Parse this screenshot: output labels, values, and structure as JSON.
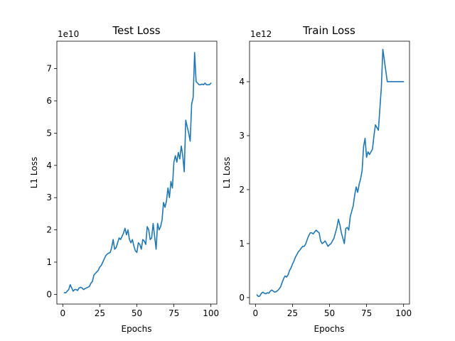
{
  "chart_data": [
    {
      "type": "line",
      "title": "Test Loss",
      "xlabel": "Epochs",
      "ylabel": "L1 Loss",
      "offset_label": "1e10",
      "xlim": [
        -4,
        104
      ],
      "ylim": [
        -0.3,
        7.85
      ],
      "xticks": [
        0,
        25,
        50,
        75,
        100
      ],
      "yticks": [
        0,
        1,
        2,
        3,
        4,
        5,
        6,
        7
      ],
      "color": "#1f77b4",
      "x": [
        1,
        2,
        3,
        4,
        5,
        6,
        7,
        8,
        9,
        10,
        11,
        12,
        13,
        14,
        15,
        16,
        17,
        18,
        19,
        20,
        21,
        22,
        23,
        24,
        25,
        26,
        27,
        28,
        29,
        30,
        31,
        32,
        33,
        34,
        35,
        36,
        37,
        38,
        39,
        40,
        41,
        42,
        43,
        44,
        45,
        46,
        47,
        48,
        49,
        50,
        51,
        52,
        53,
        54,
        55,
        56,
        57,
        58,
        59,
        60,
        61,
        62,
        63,
        64,
        65,
        66,
        67,
        68,
        69,
        70,
        71,
        72,
        73,
        74,
        75,
        76,
        77,
        78,
        79,
        80,
        81,
        82,
        83,
        84,
        85,
        86,
        87,
        88,
        89,
        90,
        91,
        92,
        93,
        94,
        95,
        96,
        97,
        98,
        99,
        100
      ],
      "y": [
        0.05,
        0.05,
        0.1,
        0.15,
        0.3,
        0.2,
        0.1,
        0.15,
        0.15,
        0.12,
        0.2,
        0.22,
        0.2,
        0.15,
        0.18,
        0.2,
        0.22,
        0.25,
        0.35,
        0.4,
        0.6,
        0.65,
        0.7,
        0.75,
        0.85,
        0.9,
        1.0,
        1.1,
        1.2,
        1.25,
        1.28,
        1.3,
        1.45,
        1.7,
        1.4,
        1.45,
        1.6,
        1.75,
        1.7,
        1.8,
        1.9,
        2.05,
        1.85,
        2.0,
        1.7,
        1.6,
        1.7,
        1.5,
        1.35,
        1.3,
        1.6,
        1.55,
        1.4,
        1.7,
        1.65,
        1.55,
        2.1,
        2.0,
        1.7,
        1.75,
        2.2,
        1.8,
        1.4,
        2.2,
        2.0,
        2.1,
        2.3,
        2.85,
        2.7,
        2.9,
        3.3,
        3.0,
        3.5,
        3.3,
        4.1,
        4.3,
        4.1,
        4.4,
        4.2,
        4.6,
        4.3,
        3.8,
        5.4,
        5.2,
        5.0,
        4.75,
        5.9,
        6.1,
        7.5,
        6.6,
        6.55,
        6.5,
        6.5,
        6.52,
        6.5,
        6.55,
        6.5,
        6.5,
        6.5,
        6.55
      ]
    },
    {
      "type": "line",
      "title": "Train Loss",
      "xlabel": "Epochs",
      "ylabel": "L1 Loss",
      "offset_label": "1e12",
      "xlim": [
        -4,
        104
      ],
      "ylim": [
        -0.12,
        4.75
      ],
      "xticks": [
        0,
        25,
        50,
        75,
        100
      ],
      "yticks": [
        0,
        1,
        2,
        3,
        4
      ],
      "color": "#1f77b4",
      "x": [
        1,
        2,
        3,
        4,
        5,
        6,
        7,
        8,
        9,
        10,
        11,
        12,
        13,
        14,
        15,
        16,
        17,
        18,
        19,
        20,
        21,
        22,
        23,
        24,
        25,
        26,
        27,
        28,
        29,
        30,
        31,
        32,
        33,
        34,
        35,
        36,
        37,
        38,
        39,
        40,
        41,
        42,
        43,
        44,
        45,
        46,
        47,
        48,
        49,
        50,
        51,
        52,
        53,
        54,
        55,
        56,
        57,
        58,
        59,
        60,
        61,
        62,
        63,
        64,
        65,
        66,
        67,
        68,
        69,
        70,
        71,
        72,
        73,
        74,
        75,
        76,
        77,
        78,
        79,
        80,
        81,
        82,
        83,
        84,
        85,
        86,
        87,
        88,
        89,
        90,
        91,
        92,
        93,
        94,
        95,
        96,
        97,
        98,
        99,
        100
      ],
      "y": [
        0.05,
        0.02,
        0.03,
        0.08,
        0.1,
        0.08,
        0.07,
        0.09,
        0.08,
        0.12,
        0.14,
        0.12,
        0.1,
        0.11,
        0.13,
        0.16,
        0.2,
        0.28,
        0.35,
        0.4,
        0.38,
        0.42,
        0.5,
        0.55,
        0.62,
        0.68,
        0.75,
        0.8,
        0.85,
        0.88,
        0.92,
        0.95,
        0.95,
        1.0,
        1.08,
        1.15,
        1.2,
        1.2,
        1.18,
        1.22,
        1.25,
        1.22,
        1.2,
        1.05,
        1.0,
        1.02,
        1.05,
        1.0,
        0.95,
        0.98,
        1.0,
        1.05,
        1.1,
        1.2,
        1.3,
        1.45,
        1.35,
        1.2,
        1.1,
        1.0,
        1.28,
        1.3,
        1.25,
        1.5,
        1.6,
        1.7,
        1.9,
        2.05,
        1.95,
        2.1,
        2.2,
        2.35,
        2.8,
        2.95,
        2.6,
        2.7,
        2.65,
        2.7,
        2.75,
        3.0,
        3.2,
        3.15,
        3.1,
        3.5,
        3.9,
        4.6,
        4.4,
        4.2,
        4.0,
        4.0,
        4.0,
        4.0,
        4.0,
        4.0,
        4.0,
        4.0,
        4.0,
        4.0,
        4.0,
        4.0
      ]
    }
  ]
}
